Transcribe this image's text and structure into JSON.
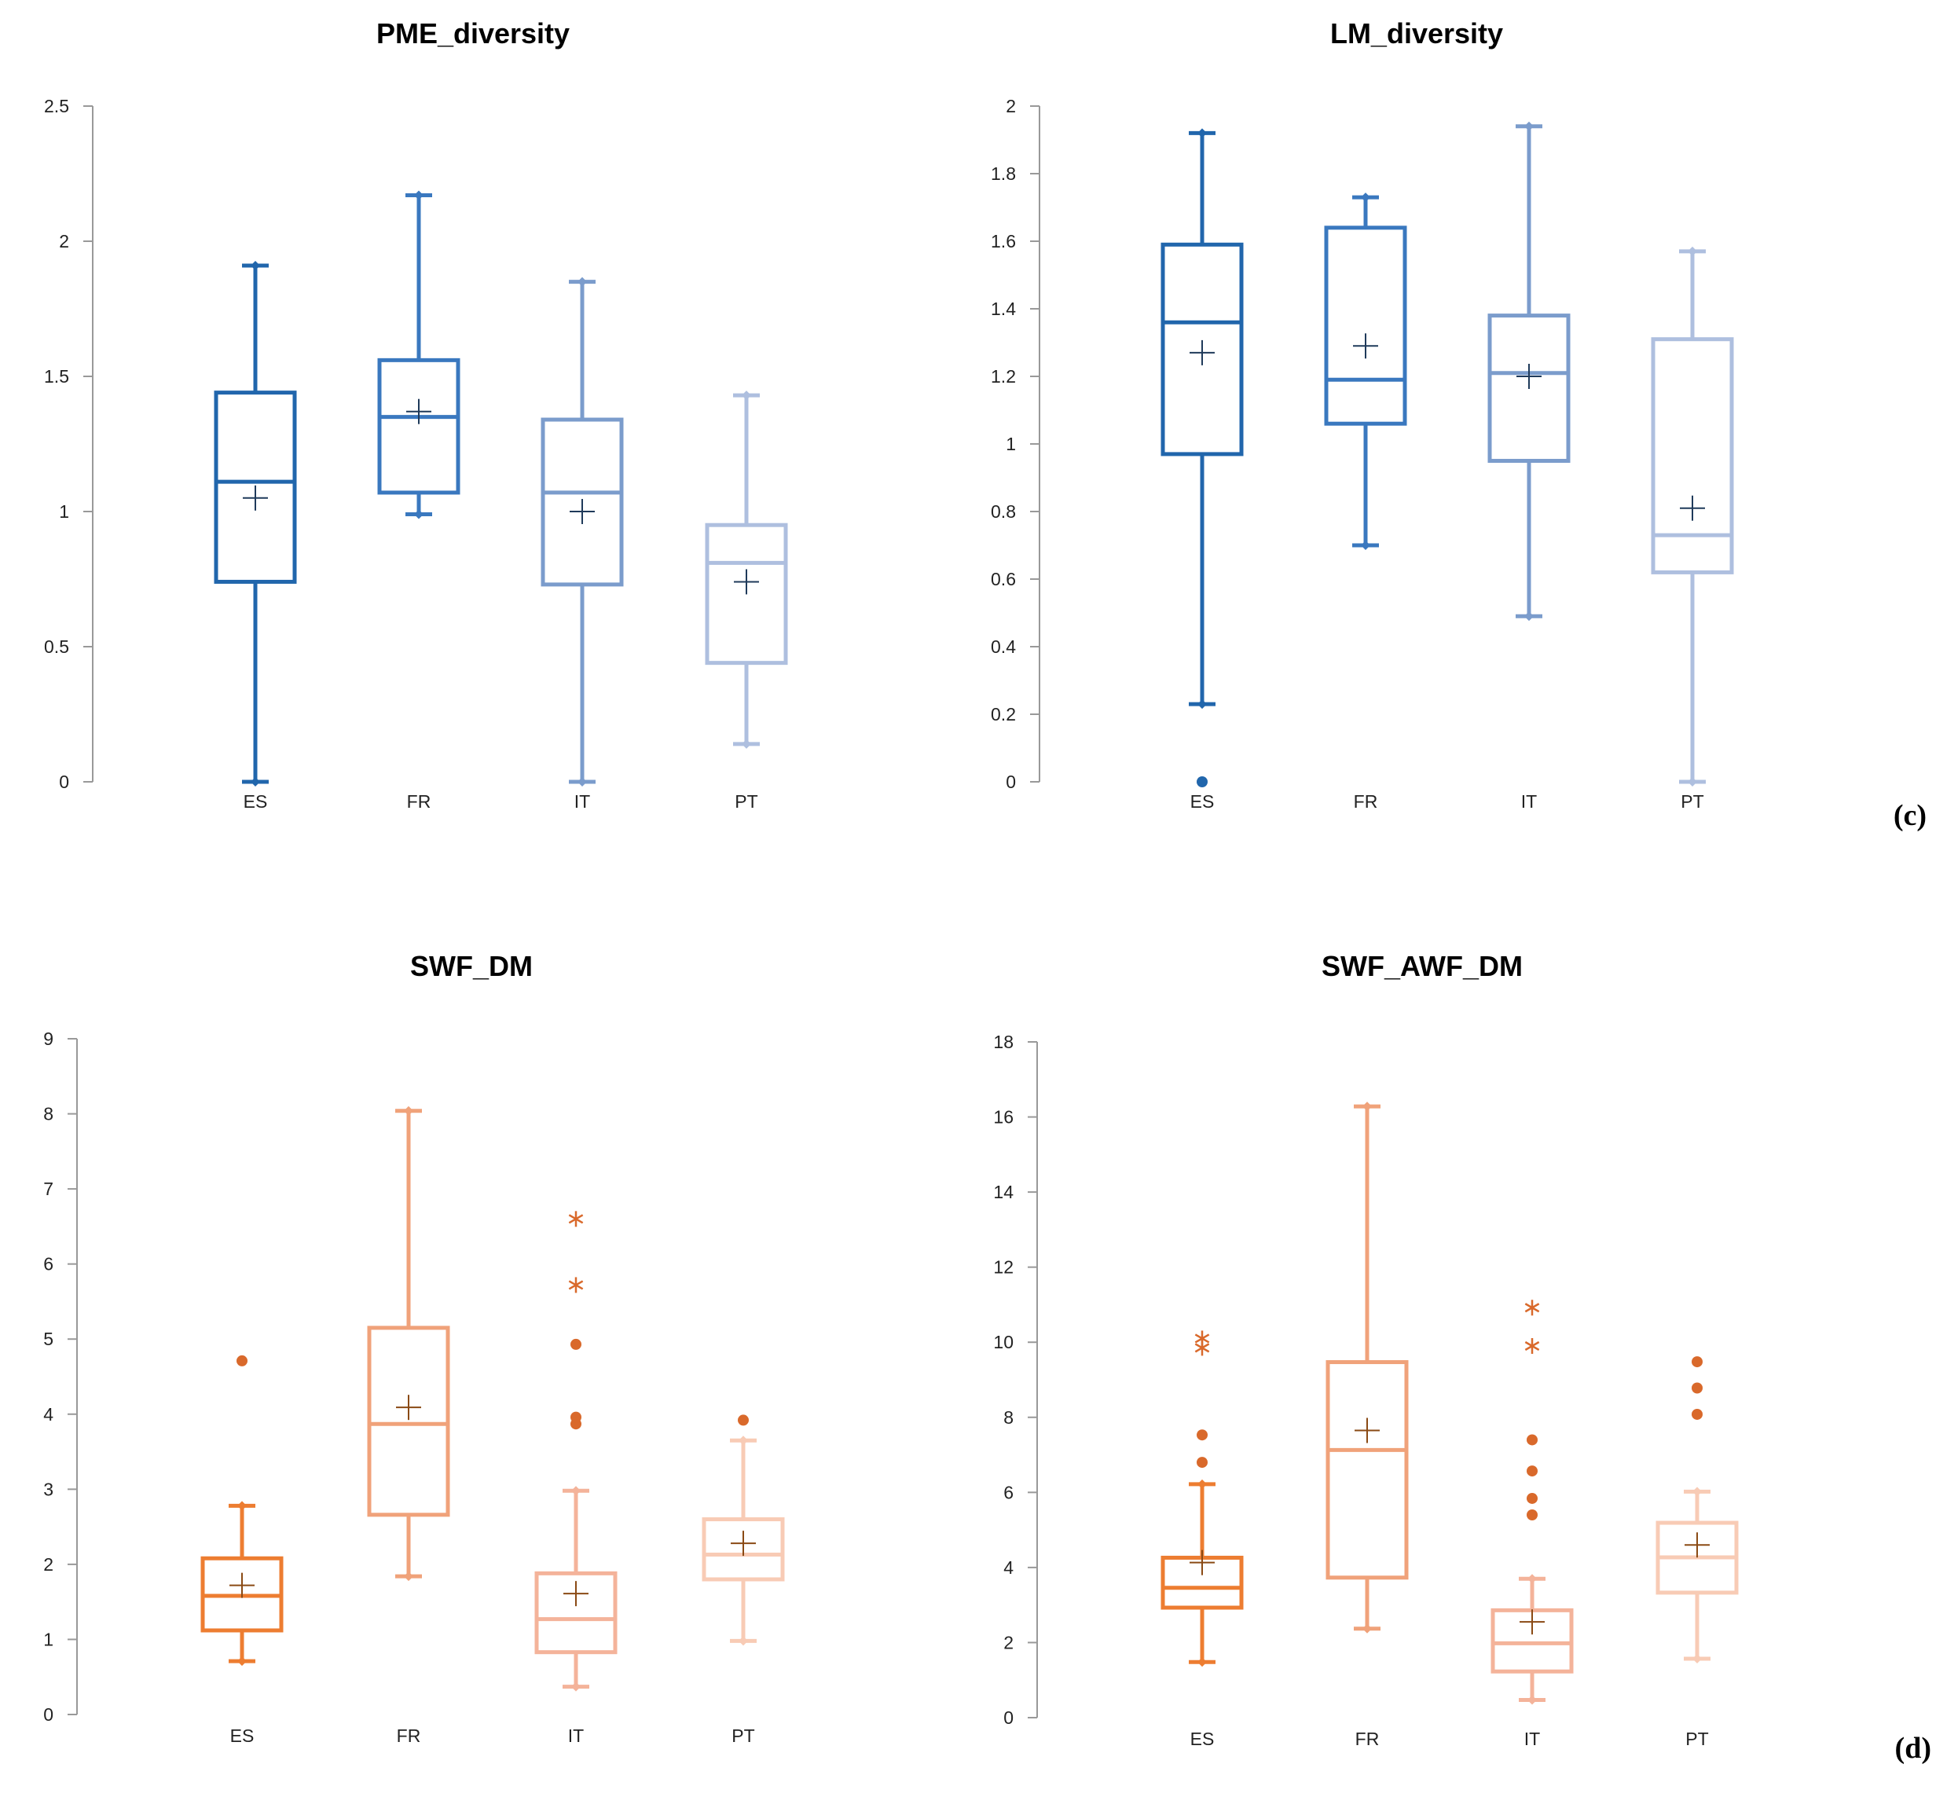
{
  "panel_labels": [
    "(c)",
    "(d)"
  ],
  "chart_data": [
    {
      "type": "boxplot",
      "title": "PME_diversity",
      "categories": [
        "ES",
        "FR",
        "IT",
        "PT"
      ],
      "ylim": [
        0,
        2.5
      ],
      "yticks": [
        0,
        0.5,
        1,
        1.5,
        2,
        2.5
      ],
      "ytick_labels": [
        "0",
        "0.5",
        "1",
        "1.5",
        "2",
        "2.5"
      ],
      "colors": [
        "#2166ac",
        "#3a78bf",
        "#7b9ccc",
        "#aebfdf"
      ],
      "mean_color": "#1f3a5a",
      "boxes": [
        {
          "min": 0.0,
          "q1": 0.74,
          "median": 1.11,
          "q3": 1.44,
          "max": 1.91,
          "mean": 1.05,
          "outliers": [],
          "extremes": []
        },
        {
          "min": 0.99,
          "q1": 1.07,
          "median": 1.35,
          "q3": 1.56,
          "max": 2.17,
          "mean": 1.37,
          "outliers": [],
          "extremes": []
        },
        {
          "min": 0.0,
          "q1": 0.73,
          "median": 1.07,
          "q3": 1.34,
          "max": 1.85,
          "mean": 1.0,
          "outliers": [],
          "extremes": []
        },
        {
          "min": 0.14,
          "q1": 0.44,
          "median": 0.81,
          "q3": 0.95,
          "max": 1.43,
          "mean": 0.74,
          "outliers": [],
          "extremes": []
        }
      ]
    },
    {
      "type": "boxplot",
      "title": "LM_diversity",
      "categories": [
        "ES",
        "FR",
        "IT",
        "PT"
      ],
      "ylim": [
        0,
        2
      ],
      "yticks": [
        0,
        0.2,
        0.4,
        0.6,
        0.8,
        1,
        1.2,
        1.4,
        1.6,
        1.8,
        2
      ],
      "ytick_labels": [
        "0",
        "0.2",
        "0.4",
        "0.6",
        "0.8",
        "1",
        "1.2",
        "1.4",
        "1.6",
        "1.8",
        "2"
      ],
      "colors": [
        "#2166ac",
        "#3a78bf",
        "#7b9ccc",
        "#aebfdf"
      ],
      "mean_color": "#1f3a5a",
      "boxes": [
        {
          "min": 0.23,
          "q1": 0.97,
          "median": 1.36,
          "q3": 1.59,
          "max": 1.92,
          "mean": 1.27,
          "outliers": [
            0.0
          ],
          "extremes": []
        },
        {
          "min": 0.7,
          "q1": 1.06,
          "median": 1.19,
          "q3": 1.64,
          "max": 1.73,
          "mean": 1.29,
          "outliers": [],
          "extremes": []
        },
        {
          "min": 0.49,
          "q1": 0.95,
          "median": 1.21,
          "q3": 1.38,
          "max": 1.94,
          "mean": 1.2,
          "outliers": [],
          "extremes": []
        },
        {
          "min": 0.0,
          "q1": 0.62,
          "median": 0.73,
          "q3": 1.31,
          "max": 1.57,
          "mean": 0.81,
          "outliers": [],
          "extremes": []
        }
      ]
    },
    {
      "type": "boxplot",
      "title": "SWF_DM",
      "categories": [
        "ES",
        "FR",
        "IT",
        "PT"
      ],
      "ylim": [
        0,
        9
      ],
      "yticks": [
        0,
        1,
        2,
        3,
        4,
        5,
        6,
        7,
        8,
        9
      ],
      "ytick_labels": [
        "0",
        "1",
        "2",
        "3",
        "4",
        "5",
        "6",
        "7",
        "8",
        "9"
      ],
      "colors": [
        "#ed7d31",
        "#f0a27a",
        "#f4b39a",
        "#f8cbb5"
      ],
      "mean_color": "#8a4a14",
      "point_color": "#d9692b",
      "boxes": [
        {
          "min": 0.71,
          "q1": 1.12,
          "median": 1.58,
          "q3": 2.08,
          "max": 2.78,
          "mean": 1.72,
          "outliers": [
            4.71
          ],
          "extremes": []
        },
        {
          "min": 1.84,
          "q1": 2.66,
          "median": 3.87,
          "q3": 5.15,
          "max": 8.04,
          "mean": 4.09,
          "outliers": [],
          "extremes": []
        },
        {
          "min": 0.37,
          "q1": 0.83,
          "median": 1.27,
          "q3": 1.88,
          "max": 2.98,
          "mean": 1.61,
          "outliers": [
            3.87,
            3.96,
            4.93
          ],
          "extremes": [
            5.72,
            6.6
          ]
        },
        {
          "min": 0.98,
          "q1": 1.8,
          "median": 2.13,
          "q3": 2.6,
          "max": 3.65,
          "mean": 2.28,
          "outliers": [
            3.92
          ],
          "extremes": []
        }
      ]
    },
    {
      "type": "boxplot",
      "title": "SWF_AWF_DM",
      "categories": [
        "ES",
        "FR",
        "IT",
        "PT"
      ],
      "ylim": [
        0,
        18
      ],
      "yticks": [
        0,
        2,
        4,
        6,
        8,
        10,
        12,
        14,
        16,
        18
      ],
      "ytick_labels": [
        "0",
        "2",
        "4",
        "6",
        "8",
        "10",
        "12",
        "14",
        "16",
        "18"
      ],
      "colors": [
        "#ed7d31",
        "#f0a27a",
        "#f4b39a",
        "#f8cbb5"
      ],
      "mean_color": "#8a4a14",
      "point_color": "#d9692b",
      "boxes": [
        {
          "min": 1.48,
          "q1": 2.93,
          "median": 3.46,
          "q3": 4.26,
          "max": 6.22,
          "mean": 4.13,
          "outliers": [
            6.8,
            7.53
          ],
          "extremes": [
            9.85,
            10.1
          ]
        },
        {
          "min": 2.37,
          "q1": 3.73,
          "median": 7.13,
          "q3": 9.47,
          "max": 16.28,
          "mean": 7.65,
          "outliers": [],
          "extremes": []
        },
        {
          "min": 0.47,
          "q1": 1.23,
          "median": 1.98,
          "q3": 2.86,
          "max": 3.7,
          "mean": 2.55,
          "outliers": [
            5.4,
            5.84,
            6.57,
            7.4
          ],
          "extremes": [
            9.9,
            10.92
          ]
        },
        {
          "min": 1.57,
          "q1": 3.33,
          "median": 4.27,
          "q3": 5.19,
          "max": 6.02,
          "mean": 4.6,
          "outliers": [
            8.08,
            8.78,
            9.48
          ],
          "extremes": []
        }
      ]
    }
  ]
}
